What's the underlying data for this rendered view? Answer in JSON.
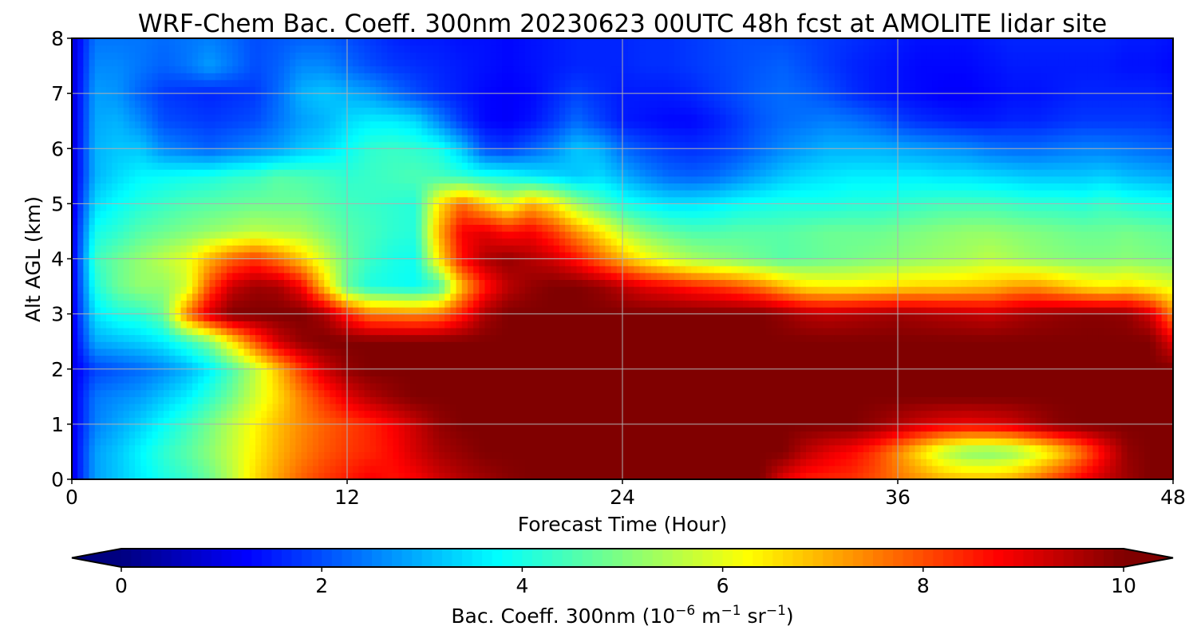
{
  "chart_data": {
    "type": "heatmap",
    "title": "WRF-Chem Bac. Coeff. 300nm  20230623 00UTC 48h fcst at AMOLITE lidar site",
    "xlabel": "Forecast Time (Hour)",
    "ylabel": "Alt AGL (km)",
    "x_ticks": [
      "0",
      "12",
      "24",
      "36",
      "48"
    ],
    "y_ticks": [
      "0",
      "1",
      "2",
      "3",
      "4",
      "5",
      "6",
      "7",
      "8"
    ],
    "xlim": [
      0,
      48
    ],
    "ylim": [
      0,
      8
    ],
    "grid": true,
    "colormap": "jet",
    "colorbar": {
      "label_main": "Bac. Coeff. 300nm  (10",
      "label_exp1": "−6",
      "label_mid": " m",
      "label_exp2": "−1",
      "label_end": " sr",
      "label_exp3": "−1",
      "label_close": ")",
      "ticks": [
        "0",
        "2",
        "4",
        "6",
        "8",
        "10"
      ],
      "min": 0,
      "max": 10,
      "extend": "both"
    },
    "x": [
      0,
      1,
      2,
      3,
      4,
      5,
      6,
      7,
      8,
      9,
      10,
      11,
      12,
      13,
      14,
      15,
      16,
      17,
      18,
      19,
      20,
      21,
      22,
      23,
      24,
      25,
      26,
      27,
      28,
      29,
      30,
      31,
      32,
      33,
      34,
      35,
      36,
      37,
      38,
      39,
      40,
      41,
      42,
      43,
      44,
      45,
      46,
      47,
      48
    ],
    "y": [
      0,
      0.5,
      1,
      1.5,
      2,
      2.5,
      3,
      3.5,
      4,
      4.5,
      5,
      5.5,
      6,
      6.5,
      7,
      7.5,
      8
    ],
    "z_description": "rows indexed by altitude (y), columns by forecast hour (x); values in 10^-6 m^-1 sr^-1",
    "z": [
      [
        1.0,
        2.8,
        3.2,
        3.6,
        4.0,
        4.3,
        4.8,
        5.6,
        6.6,
        7.2,
        7.8,
        8.2,
        8.5,
        8.8,
        8.6,
        8.8,
        9.2,
        9.5,
        9.7,
        9.9,
        10,
        10,
        10,
        10,
        10,
        10,
        10,
        10,
        10,
        10,
        10,
        9.0,
        8.5,
        8.4,
        8.3,
        8.0,
        7.6,
        7.3,
        7.0,
        6.9,
        6.9,
        7.1,
        7.6,
        8.2,
        8.8,
        9.3,
        9.7,
        10,
        10
      ],
      [
        1.0,
        2.8,
        3.2,
        3.7,
        4.2,
        4.6,
        5.1,
        5.7,
        6.4,
        7.0,
        7.5,
        7.9,
        8.2,
        8.4,
        8.7,
        9.2,
        9.6,
        9.8,
        10,
        10,
        10,
        10,
        10,
        10,
        10,
        10,
        10,
        10,
        10,
        10,
        10,
        10,
        9.4,
        9.0,
        8.7,
        8.2,
        7.4,
        6.5,
        5.6,
        5.1,
        5.0,
        5.2,
        5.8,
        6.6,
        7.6,
        8.8,
        9.8,
        10,
        10
      ],
      [
        1.0,
        2.5,
        2.9,
        3.3,
        3.8,
        4.3,
        4.9,
        5.6,
        6.3,
        6.9,
        7.4,
        7.8,
        8.1,
        8.4,
        8.8,
        9.3,
        9.8,
        10,
        10,
        10,
        10,
        10,
        10,
        10,
        10,
        10,
        10,
        10,
        10,
        10,
        10,
        10,
        10,
        10,
        10,
        9.8,
        9.5,
        9.2,
        9.0,
        8.9,
        9.0,
        9.2,
        9.6,
        9.9,
        10,
        10,
        10,
        10,
        10
      ],
      [
        1.0,
        2.4,
        2.6,
        2.8,
        3.2,
        3.6,
        4.2,
        4.9,
        5.8,
        6.6,
        7.5,
        8.3,
        9.0,
        9.5,
        9.8,
        10,
        10,
        10,
        10,
        10,
        10,
        10,
        10,
        10,
        10,
        10,
        10,
        10,
        10,
        10,
        10,
        10,
        10,
        10,
        10,
        10,
        10,
        10,
        10,
        10,
        10,
        10,
        10,
        10,
        10,
        10,
        10,
        10,
        10
      ],
      [
        1.0,
        1.9,
        2.1,
        2.3,
        2.6,
        3.0,
        3.6,
        4.5,
        5.6,
        6.9,
        8.2,
        9.2,
        9.8,
        10,
        10,
        10,
        10,
        10,
        10,
        10,
        10,
        10,
        10,
        10,
        10,
        10,
        10,
        10,
        10,
        10,
        10,
        10,
        10,
        10,
        10,
        10,
        10,
        10,
        10,
        10,
        10,
        10,
        10,
        10,
        10,
        10,
        10,
        10,
        10
      ],
      [
        1.0,
        2.9,
        3.1,
        3.3,
        3.6,
        4.2,
        5.0,
        6.5,
        8.0,
        9.2,
        9.8,
        10,
        10,
        10,
        10,
        10,
        10,
        10,
        10,
        10,
        10,
        10,
        10,
        10,
        10,
        10,
        10,
        10,
        10,
        10,
        10,
        10,
        10,
        10,
        10,
        10,
        10,
        10,
        10,
        10,
        10,
        10,
        10,
        10,
        10,
        10,
        10,
        10,
        9.0
      ],
      [
        1.0,
        3.5,
        4.0,
        4.2,
        4.8,
        7.5,
        9.2,
        10,
        10,
        10,
        10,
        9.6,
        8.5,
        7.6,
        7.5,
        7.4,
        7.6,
        8.5,
        9.6,
        10,
        10,
        10,
        10,
        10,
        10,
        10,
        10,
        10,
        10,
        10,
        10,
        9.8,
        9.5,
        9.4,
        9.5,
        9.6,
        9.7,
        9.6,
        9.5,
        9.4,
        9.3,
        9.5,
        9.7,
        9.8,
        9.9,
        9.9,
        9.8,
        9.2,
        7.5
      ],
      [
        1.0,
        4.0,
        4.8,
        5.2,
        5.2,
        5.8,
        8.0,
        9.3,
        9.7,
        9.6,
        8.8,
        6.8,
        4.7,
        4.0,
        3.9,
        3.8,
        4.3,
        6.9,
        8.5,
        9.4,
        9.8,
        10,
        10,
        9.8,
        9.4,
        9.0,
        8.8,
        8.5,
        8.3,
        8.0,
        7.6,
        7.0,
        6.5,
        6.4,
        6.4,
        6.5,
        6.6,
        6.7,
        6.7,
        6.8,
        6.9,
        7.2,
        7.3,
        7.0,
        6.6,
        6.4,
        6.6,
        6.3,
        6.0
      ],
      [
        1.0,
        4.3,
        4.8,
        5.2,
        5.6,
        6.0,
        7.0,
        7.8,
        8.2,
        7.6,
        6.8,
        5.8,
        4.8,
        4.3,
        4.0,
        3.9,
        6.5,
        8.6,
        9.5,
        9.8,
        9.5,
        9.2,
        8.6,
        7.8,
        7.0,
        6.3,
        5.8,
        5.4,
        5.2,
        5.0,
        4.8,
        4.6,
        4.7,
        4.8,
        4.9,
        5.0,
        5.1,
        5.2,
        5.3,
        5.4,
        5.6,
        5.4,
        5.2,
        5.1,
        5.0,
        5.0,
        5.1,
        5.0,
        4.9
      ],
      [
        1.0,
        3.9,
        4.2,
        4.6,
        4.8,
        5.0,
        5.2,
        5.4,
        5.6,
        5.5,
        5.4,
        5.0,
        4.6,
        4.4,
        4.2,
        4.1,
        7.0,
        8.8,
        9.0,
        8.6,
        8.8,
        8.2,
        7.3,
        6.5,
        5.6,
        5.0,
        4.7,
        4.5,
        4.5,
        4.6,
        4.6,
        4.6,
        4.7,
        4.8,
        4.8,
        4.8,
        4.9,
        5.0,
        5.1,
        5.2,
        5.2,
        5.1,
        5.0,
        4.9,
        4.8,
        4.8,
        4.9,
        4.8,
        4.7
      ],
      [
        0.9,
        3.4,
        3.8,
        4.1,
        4.3,
        4.5,
        4.6,
        4.7,
        4.8,
        4.8,
        4.8,
        4.6,
        4.4,
        4.3,
        4.2,
        4.1,
        6.5,
        7.7,
        6.8,
        6.0,
        7.0,
        6.4,
        5.3,
        4.6,
        4.0,
        3.7,
        3.5,
        3.5,
        3.6,
        3.8,
        3.9,
        4.0,
        4.0,
        4.0,
        4.1,
        4.1,
        4.2,
        4.3,
        4.4,
        4.4,
        4.4,
        4.3,
        4.2,
        4.2,
        4.1,
        4.3,
        4.1,
        4.0,
        3.9
      ],
      [
        0.8,
        3.0,
        3.4,
        3.7,
        3.8,
        3.9,
        4.0,
        4.2,
        4.3,
        4.6,
        4.5,
        4.4,
        4.2,
        4.3,
        4.4,
        4.5,
        4.4,
        4.2,
        4.0,
        3.9,
        3.6,
        3.4,
        3.2,
        3.4,
        3.0,
        2.6,
        2.3,
        2.2,
        2.3,
        2.6,
        2.9,
        3.2,
        3.4,
        3.5,
        3.6,
        3.6,
        3.6,
        3.6,
        3.5,
        3.5,
        3.4,
        3.3,
        3.2,
        3.2,
        3.2,
        3.3,
        3.1,
        3.0,
        2.9
      ],
      [
        0.8,
        3.0,
        3.2,
        3.2,
        2.6,
        2.4,
        2.2,
        2.4,
        2.6,
        2.8,
        3.2,
        3.4,
        3.8,
        4.2,
        4.3,
        4.2,
        4.0,
        3.2,
        2.0,
        1.8,
        2.2,
        2.6,
        3.2,
        3.0,
        2.3,
        2.0,
        1.8,
        1.7,
        1.8,
        2.0,
        2.3,
        2.6,
        2.8,
        3.0,
        3.0,
        3.0,
        2.9,
        2.8,
        2.7,
        2.6,
        2.4,
        2.3,
        2.3,
        2.4,
        2.5,
        2.5,
        2.4,
        2.3,
        2.2
      ],
      [
        0.8,
        2.9,
        3.0,
        2.6,
        2.0,
        1.9,
        1.8,
        1.9,
        2.0,
        2.4,
        2.8,
        3.0,
        3.4,
        3.6,
        3.6,
        3.4,
        2.6,
        1.8,
        1.3,
        1.2,
        1.4,
        1.8,
        2.3,
        1.9,
        1.5,
        1.4,
        1.3,
        1.3,
        1.5,
        1.8,
        2.1,
        2.3,
        2.4,
        2.5,
        2.4,
        2.2,
        1.9,
        1.7,
        1.6,
        1.5,
        1.5,
        1.6,
        1.6,
        1.7,
        1.8,
        1.8,
        1.8,
        1.8,
        1.7
      ],
      [
        0.8,
        2.8,
        2.7,
        2.2,
        1.8,
        1.7,
        1.6,
        1.7,
        1.8,
        2.3,
        3.0,
        3.2,
        3.0,
        2.8,
        2.4,
        2.0,
        1.7,
        1.5,
        1.3,
        1.2,
        1.3,
        1.6,
        1.9,
        1.7,
        1.5,
        1.5,
        1.5,
        1.6,
        1.8,
        2.0,
        2.2,
        2.3,
        2.2,
        2.0,
        1.7,
        1.5,
        1.4,
        1.3,
        1.2,
        1.2,
        1.3,
        1.4,
        1.4,
        1.5,
        1.6,
        1.6,
        1.6,
        1.6,
        1.5
      ],
      [
        0.8,
        2.6,
        2.6,
        2.4,
        2.2,
        2.4,
        2.8,
        2.4,
        2.0,
        2.2,
        2.6,
        2.6,
        2.3,
        2.0,
        1.8,
        1.7,
        1.6,
        1.5,
        1.4,
        1.3,
        1.4,
        1.5,
        1.6,
        1.6,
        1.6,
        1.7,
        1.7,
        1.8,
        1.9,
        2.0,
        2.1,
        2.2,
        2.0,
        1.8,
        1.6,
        1.5,
        1.4,
        1.3,
        1.3,
        1.3,
        1.4,
        1.5,
        1.5,
        1.5,
        1.5,
        1.5,
        1.4,
        1.4,
        1.3
      ],
      [
        0.8,
        2.4,
        2.4,
        2.4,
        2.3,
        2.4,
        2.5,
        2.3,
        2.0,
        2.1,
        2.2,
        2.2,
        2.0,
        1.8,
        1.6,
        1.5,
        1.5,
        1.4,
        1.4,
        1.3,
        1.4,
        1.5,
        1.6,
        1.6,
        1.6,
        1.7,
        1.7,
        1.8,
        1.9,
        2.0,
        2.0,
        2.0,
        1.9,
        1.8,
        1.7,
        1.6,
        1.5,
        1.4,
        1.4,
        1.4,
        1.5,
        1.6,
        1.6,
        1.6,
        1.6,
        1.6,
        1.5,
        1.5,
        1.4
      ]
    ]
  }
}
